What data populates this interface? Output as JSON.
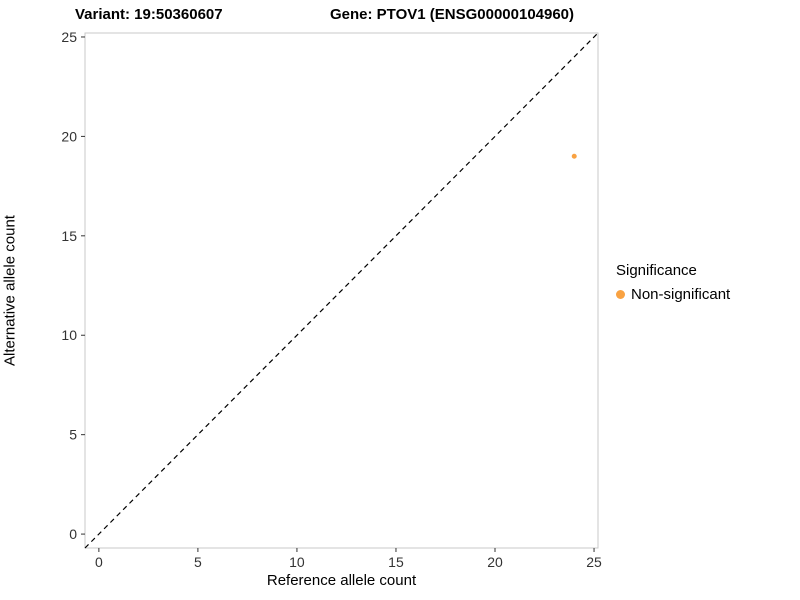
{
  "titles": {
    "variant": "Variant: 19:50360607",
    "gene": "Gene: PTOV1 (ENSG00000104960)"
  },
  "chart_data": {
    "type": "scatter",
    "title_left": "Variant: 19:50360607",
    "title_right": "Gene: PTOV1 (ENSG00000104960)",
    "xlabel": "Reference allele count",
    "ylabel": "Alternative allele count",
    "xlim": [
      -0.7,
      25.2
    ],
    "ylim": [
      -0.7,
      25.2
    ],
    "xticks": [
      0,
      5,
      10,
      15,
      20,
      25
    ],
    "yticks": [
      0,
      5,
      10,
      15,
      20,
      25
    ],
    "grid": false,
    "panel_border_color": "#c9c9c9",
    "tick_color": "#333333",
    "series": [
      {
        "name": "Non-significant",
        "color": "#F9A242",
        "points": [
          {
            "x": 24,
            "y": 19
          }
        ]
      }
    ],
    "reference_line": {
      "type": "identity",
      "style": "dashed",
      "color": "#000000"
    },
    "legend": {
      "title": "Significance",
      "position": "right",
      "entries": [
        {
          "label": "Non-significant",
          "color": "#F9A242"
        }
      ]
    }
  }
}
